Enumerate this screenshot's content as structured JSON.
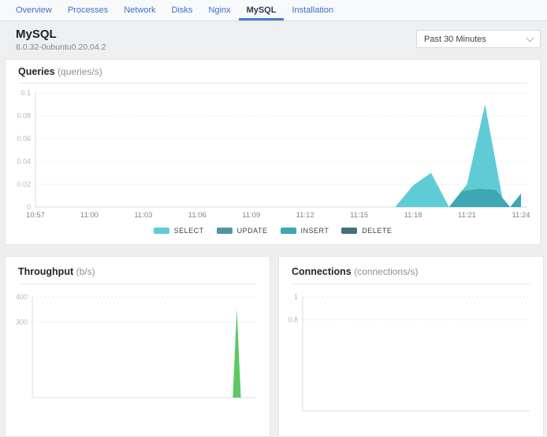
{
  "tabs": {
    "items": [
      {
        "label": "Overview",
        "active": false
      },
      {
        "label": "Processes",
        "active": false
      },
      {
        "label": "Network",
        "active": false
      },
      {
        "label": "Disks",
        "active": false
      },
      {
        "label": "Nginx",
        "active": false
      },
      {
        "label": "MySQL",
        "active": true
      },
      {
        "label": "Installation",
        "active": false
      }
    ]
  },
  "header": {
    "title": "MySQL",
    "subtitle": "8.0.32-0ubuntu0.20.04.2",
    "time_range_value": "Past 30 Minutes"
  },
  "colors": {
    "accent_blue": "#4c7bc9",
    "tab_link": "#3c72c8",
    "select_teal": "#5fccd5",
    "update_teal": "#4f96a2",
    "insert_teal": "#3da7b3",
    "delete_teal": "#45707a",
    "throughput_green": "#5ec763"
  },
  "chart_data": [
    {
      "id": "queries",
      "type": "area",
      "title": "Queries",
      "unit": "(queries/s)",
      "x_range": [
        0,
        27
      ],
      "x_ticks": [
        {
          "t": 0,
          "label": "10:57"
        },
        {
          "t": 3,
          "label": "11:00"
        },
        {
          "t": 6,
          "label": "11:03"
        },
        {
          "t": 9,
          "label": "11:06"
        },
        {
          "t": 12,
          "label": "11:09"
        },
        {
          "t": 15,
          "label": "11:12"
        },
        {
          "t": 18,
          "label": "11:15"
        },
        {
          "t": 21,
          "label": "11:18"
        },
        {
          "t": 24,
          "label": "11:21"
        },
        {
          "t": 27,
          "label": "11:24"
        }
      ],
      "ylim": [
        0,
        0.1
      ],
      "y_ticks": [
        {
          "v": 0.1,
          "label": "0.1"
        },
        {
          "v": 0.08,
          "label": "0.08"
        },
        {
          "v": 0.06,
          "label": "0.06"
        },
        {
          "v": 0.04,
          "label": "0.04"
        },
        {
          "v": 0.02,
          "label": "0.02"
        },
        {
          "v": 0,
          "label": "0"
        }
      ],
      "legend_position": "bottom-center",
      "grid": "dashed-horizontal",
      "series": [
        {
          "name": "SELECT",
          "color": "#5fccd5",
          "points": [
            [
              0,
              0
            ],
            [
              20,
              0
            ],
            [
              21,
              0.019
            ],
            [
              22,
              0.03
            ],
            [
              23,
              0
            ],
            [
              24,
              0.02
            ],
            [
              25,
              0.09
            ],
            [
              26,
              0.005
            ],
            [
              26.4,
              0
            ],
            [
              27,
              0
            ]
          ]
        },
        {
          "name": "UPDATE",
          "color": "#4f96a2",
          "points": [
            [
              0,
              0
            ],
            [
              27,
              0
            ]
          ]
        },
        {
          "name": "INSERT",
          "color": "#3da7b3",
          "points": [
            [
              0,
              0
            ],
            [
              23,
              0
            ],
            [
              23.7,
              0.014
            ],
            [
              24.7,
              0.016
            ],
            [
              25.6,
              0.015
            ],
            [
              26.4,
              0
            ],
            [
              27,
              0.012
            ]
          ]
        },
        {
          "name": "DELETE",
          "color": "#45707a",
          "points": [
            [
              0,
              0
            ],
            [
              27,
              0
            ]
          ]
        }
      ]
    },
    {
      "id": "throughput",
      "type": "area",
      "title": "Throughput",
      "unit": "(b/s)",
      "x_range": [
        0,
        27
      ],
      "x_ticks": [],
      "ylim": [
        0,
        400
      ],
      "y_ticks": [
        {
          "v": 400,
          "label": "400"
        },
        {
          "v": 300,
          "label": "300"
        }
      ],
      "grid": "dashed-horizontal",
      "series": [
        {
          "name": "",
          "color": "#5ec763",
          "points": [
            [
              0,
              0
            ],
            [
              24.7,
              0
            ],
            [
              25.2,
              352
            ],
            [
              25.7,
              0
            ],
            [
              27,
              0
            ]
          ]
        }
      ]
    },
    {
      "id": "connections",
      "type": "area",
      "title": "Connections",
      "unit": "(connections/s)",
      "x_range": [
        0,
        27
      ],
      "x_ticks": [],
      "ylim": [
        0,
        1
      ],
      "y_ticks": [
        {
          "v": 1,
          "label": "1"
        },
        {
          "v": 0.8,
          "label": "0.8"
        }
      ],
      "grid": "dashed-horizontal",
      "series": []
    }
  ]
}
